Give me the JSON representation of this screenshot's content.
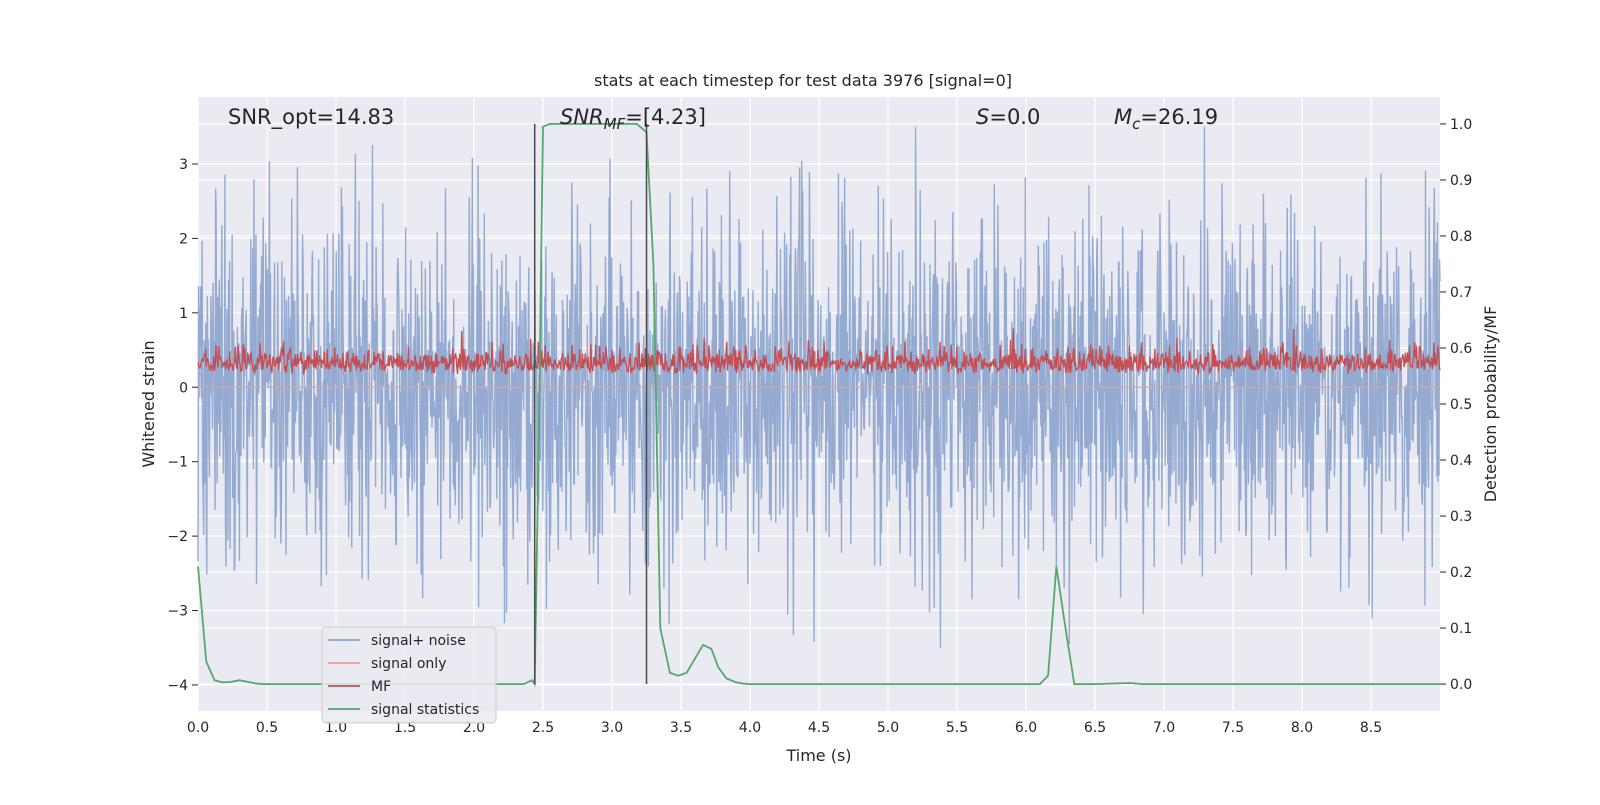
{
  "chart_data": {
    "type": "line",
    "title": "stats at each timestep for test data 3976 [signal=0]",
    "xlabel": "Time (s)",
    "ylabel_left": "Whitened strain",
    "ylabel_right": "Detection probability/MF",
    "xlim": [
      0.0,
      9.0
    ],
    "ylim_left": [
      -4.35,
      3.9
    ],
    "ylim_right": [
      -0.048,
      1.048
    ],
    "x_ticks": [
      "0.0",
      "0.5",
      "1.0",
      "1.5",
      "2.0",
      "2.5",
      "3.0",
      "3.5",
      "4.0",
      "4.5",
      "5.0",
      "5.5",
      "6.0",
      "6.5",
      "7.0",
      "7.5",
      "8.0",
      "8.5"
    ],
    "y_ticks_left": [
      "3",
      "2",
      "1",
      "0",
      "−1",
      "−2",
      "−3",
      "−4"
    ],
    "y_ticks_left_values": [
      3,
      2,
      1,
      0,
      -1,
      -2,
      -3,
      -4
    ],
    "y_ticks_right": [
      "1.0",
      "0.9",
      "0.8",
      "0.7",
      "0.6",
      "0.5",
      "0.4",
      "0.3",
      "0.2",
      "0.1",
      "0.0"
    ],
    "y_ticks_right_values": [
      1.0,
      0.9,
      0.8,
      0.7,
      0.6,
      0.5,
      0.4,
      0.3,
      0.2,
      0.1,
      0.0
    ],
    "grid": true,
    "legend_position": "lower-left",
    "annotations": {
      "snr_opt": "SNR_opt=14.83",
      "snr_mf_main": "SNR",
      "snr_mf_sub": "MF",
      "snr_mf_value": "=[4.23]",
      "s_symbol": "S",
      "s_value": "=0.0",
      "mc_symbol": "M",
      "mc_sub": "c",
      "mc_value": "=26.19"
    },
    "vertical_markers": [
      2.44,
      3.25
    ],
    "series": [
      {
        "name": "signal+ noise",
        "color": "#8fa6cf",
        "axis": "left",
        "kind": "noise",
        "amplitude_range": [
          -3.5,
          3.5
        ]
      },
      {
        "name": "signal only",
        "color": "#e9a184",
        "axis": "left",
        "kind": "flat",
        "value": 0.0
      },
      {
        "name": "MF",
        "color": "#c44e52",
        "axis": "left",
        "kind": "mf",
        "band": [
          0.0,
          1.0
        ]
      },
      {
        "name": "signal statistics",
        "color": "#55a868",
        "axis": "right",
        "kind": "line",
        "x": [
          0.0,
          0.06,
          0.12,
          0.18,
          0.24,
          0.3,
          0.36,
          0.42,
          0.48,
          2.0,
          2.36,
          2.42,
          2.44,
          2.47,
          2.5,
          2.55,
          2.6,
          3.1,
          3.18,
          3.25,
          3.3,
          3.35,
          3.42,
          3.48,
          3.54,
          3.6,
          3.66,
          3.72,
          3.77,
          3.83,
          3.9,
          3.95,
          4.0,
          4.1,
          6.0,
          6.1,
          6.16,
          6.22,
          6.28,
          6.35,
          6.4,
          6.5,
          6.75,
          6.85,
          7.0,
          9.0
        ],
        "y": [
          0.21,
          0.04,
          0.007,
          0.003,
          0.004,
          0.007,
          0.004,
          0.001,
          0.0,
          0.0,
          0.0,
          0.007,
          0.0,
          0.45,
          0.995,
          1.0,
          1.0,
          1.0,
          1.0,
          0.985,
          0.75,
          0.1,
          0.02,
          0.015,
          0.02,
          0.045,
          0.07,
          0.063,
          0.03,
          0.01,
          0.003,
          0.001,
          0.0,
          0.0,
          0.0,
          0.0,
          0.015,
          0.21,
          0.11,
          0.0,
          0.0,
          0.0,
          0.002,
          0.0,
          0.0,
          0.0
        ]
      }
    ]
  }
}
